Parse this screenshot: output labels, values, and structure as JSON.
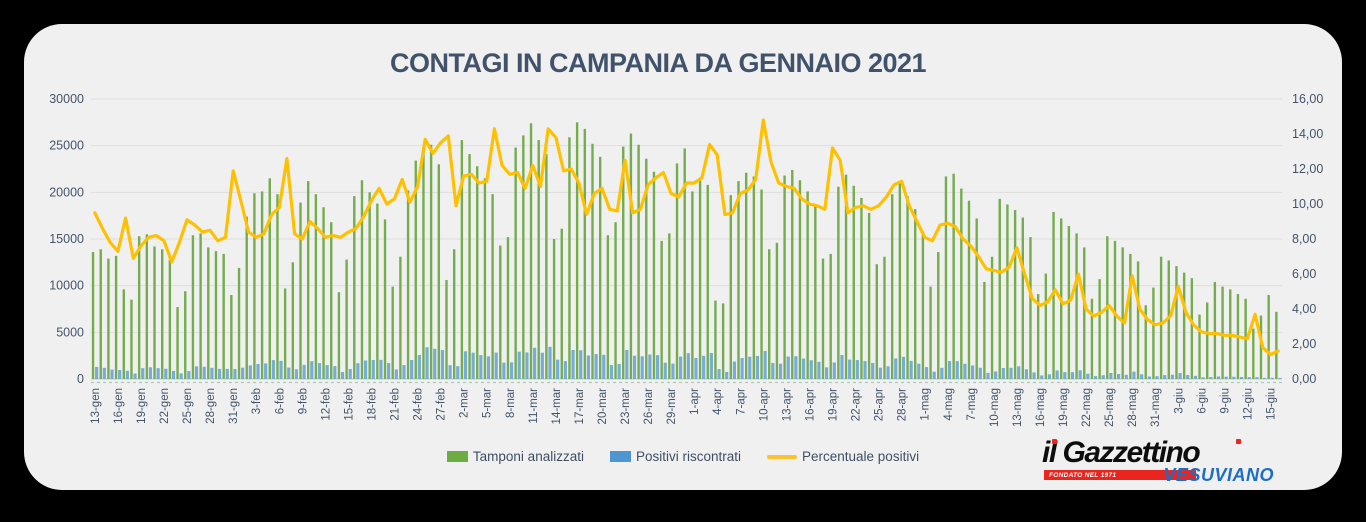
{
  "page": {
    "outer_background": "#000000",
    "card_background": "#f0f0f1"
  },
  "header": {
    "title": "CONTAGI IN CAMPANIA DA GENNAIO 2021",
    "color": "#41536b"
  },
  "legend": [
    {
      "label": "Tamponi analizzati",
      "type": "bar",
      "color": "#6cad43"
    },
    {
      "label": "Positivi riscontrati",
      "type": "bar",
      "color": "#4e96d2"
    },
    {
      "label": "Percentuale positivi",
      "type": "line",
      "color": "#ffc12e"
    }
  ],
  "logo": {
    "title": "il Gazzettino",
    "banner": "FONDATO NEL 1971",
    "subtitle": "VESUVIANO",
    "colors": {
      "title": "#0d0d0d",
      "banner": "#e8261f",
      "subtitle": "#1b6ec8"
    }
  },
  "chart_data": {
    "type": "combo",
    "title": "CONTAGI IN CAMPANIA DA GENNAIO 2021",
    "n_points": 155,
    "tick_interval_days": 3,
    "grid": true,
    "legend_position": "bottom",
    "x_tick_labels": [
      "13-gen",
      "16-gen",
      "19-gen",
      "22-gen",
      "25-gen",
      "28-gen",
      "31-gen",
      "3-feb",
      "6-feb",
      "9-feb",
      "12-feb",
      "15-feb",
      "18-feb",
      "21-feb",
      "24-feb",
      "27-feb",
      "2-mar",
      "5-mar",
      "8-mar",
      "11-mar",
      "14-mar",
      "17-mar",
      "20-mar",
      "23-mar",
      "26-mar",
      "29-mar",
      "1-apr",
      "4-apr",
      "7-apr",
      "10-apr",
      "13-apr",
      "16-apr",
      "19-apr",
      "22-apr",
      "25-apr",
      "28-apr",
      "1-mag",
      "4-mag",
      "7-mag",
      "10-mag",
      "13-mag",
      "16-mag",
      "19-mag",
      "22-mag",
      "25-mag",
      "28-mag",
      "31-mag",
      "3-giu",
      "6-giu",
      "9-giu",
      "12-giu",
      "15-giu"
    ],
    "left_axis": {
      "min": 0,
      "max": 30000,
      "step": 5000,
      "tick_labels": [
        "0",
        "5000",
        "10000",
        "15000",
        "20000",
        "25000",
        "30000"
      ]
    },
    "right_axis": {
      "min": 0,
      "max": 16,
      "step": 2,
      "tick_labels": [
        "0,00",
        "2,00",
        "4,00",
        "6,00",
        "8,00",
        "10,00",
        "12,00",
        "14,00",
        "16,00"
      ]
    },
    "series": [
      {
        "name": "Tamponi analizzati",
        "type": "bar",
        "axis": "left",
        "color": "#74ac4e",
        "values": [
          13600,
          13900,
          12900,
          13200,
          9600,
          8500,
          15300,
          15500,
          14200,
          13900,
          12800,
          7700,
          9400,
          15400,
          15600,
          14100,
          13700,
          13400,
          9000,
          11900,
          17400,
          19900,
          20100,
          21500,
          19800,
          9700,
          12500,
          18900,
          21200,
          19800,
          18400,
          16800,
          9300,
          12800,
          19600,
          21300,
          20000,
          18800,
          17100,
          9900,
          13100,
          20200,
          23400,
          24800,
          25100,
          23000,
          10600,
          13900,
          25600,
          24100,
          22800,
          21500,
          19800,
          14300,
          15200,
          24800,
          26100,
          27400,
          25600,
          24100,
          15000,
          16100,
          25900,
          27500,
          26800,
          25200,
          23800,
          15400,
          16800,
          24900,
          26300,
          25100,
          23600,
          22200,
          14800,
          15600,
          23100,
          24700,
          20100,
          21600,
          20800,
          8400,
          8100,
          19700,
          21200,
          22100,
          21700,
          20300,
          13900,
          14600,
          21800,
          22400,
          21300,
          20100,
          18600,
          12900,
          13400,
          20600,
          21900,
          20700,
          19400,
          17800,
          12300,
          13100,
          19800,
          21000,
          19600,
          18200,
          15800,
          9900,
          13600,
          21700,
          22000,
          20400,
          19100,
          17200,
          10400,
          13100,
          19300,
          18700,
          18100,
          17300,
          15200,
          9100,
          11300,
          17900,
          17200,
          16400,
          15600,
          14100,
          8600,
          10700,
          15300,
          14800,
          14100,
          13400,
          12600,
          7900,
          9800,
          13100,
          12700,
          12100,
          11400,
          10800,
          6900,
          8200,
          10400,
          9900,
          9600,
          9100,
          8600,
          5400,
          6800,
          9000,
          7200
        ]
      },
      {
        "name": "Positivi riscontrati",
        "type": "bar",
        "axis": "left",
        "color": "#62a0d2",
        "values": [
          1292,
          1195,
          1006,
          964,
          883,
          587,
          1163,
          1256,
          1164,
          1098,
          858,
          601,
          855,
          1355,
          1310,
          1199,
          1082,
          1085,
          1071,
          1214,
          1462,
          1612,
          1668,
          2021,
          1940,
          1222,
          1038,
          1512,
          1908,
          1703,
          1490,
          1378,
          753,
          1075,
          1686,
          1981,
          2040,
          2049,
          1710,
          1020,
          1493,
          2040,
          2574,
          3398,
          3238,
          3105,
          1473,
          1376,
          2970,
          2820,
          2554,
          2430,
          2831,
          1745,
          1778,
          2926,
          2845,
          3343,
          2816,
          3446,
          2070,
          1916,
          3108,
          3080,
          2519,
          2671,
          2594,
          1494,
          1613,
          3113,
          2499,
          2435,
          2620,
          2553,
          1746,
          1654,
          2402,
          2766,
          2251,
          2484,
          2787,
          1075,
          761,
          1872,
          2247,
          2387,
          2474,
          3004,
          1724,
          1635,
          2398,
          2442,
          2194,
          2010,
          1841,
          1251,
          1769,
          2575,
          2081,
          2029,
          1921,
          1727,
          1218,
          1362,
          2198,
          2373,
          1940,
          1638,
          1280,
          782,
          1197,
          1931,
          1914,
          1632,
          1452,
          1204,
          655,
          812,
          1177,
          1197,
          1358,
          1038,
          699,
          382,
          497,
          913,
          740,
          738,
          936,
          564,
          310,
          407,
          643,
          533,
          451,
          791,
          504,
          269,
          304,
          419,
          457,
          641,
          433,
          335,
          186,
          213,
          270,
          248,
          240,
          218,
          198,
          200,
          122,
          126,
          115
        ]
      },
      {
        "name": "Percentuale positivi",
        "type": "line",
        "axis": "right",
        "color": "#ffc000",
        "values": [
          9.5,
          8.6,
          7.8,
          7.3,
          9.2,
          6.9,
          7.6,
          8.1,
          8.2,
          7.9,
          6.7,
          7.8,
          9.1,
          8.8,
          8.4,
          8.5,
          7.9,
          8.1,
          11.9,
          10.2,
          8.4,
          8.1,
          8.3,
          9.4,
          9.8,
          12.6,
          8.3,
          8.0,
          9.0,
          8.6,
          8.1,
          8.2,
          8.1,
          8.4,
          8.6,
          9.3,
          10.2,
          10.9,
          10.0,
          10.3,
          11.4,
          10.1,
          11.0,
          13.7,
          12.9,
          13.5,
          13.9,
          9.9,
          11.6,
          11.7,
          11.2,
          11.3,
          14.3,
          12.2,
          11.7,
          11.8,
          10.9,
          12.2,
          11.0,
          14.3,
          13.8,
          11.9,
          12.0,
          11.2,
          9.4,
          10.6,
          10.9,
          9.7,
          9.6,
          12.5,
          9.5,
          9.7,
          11.1,
          11.5,
          11.8,
          10.6,
          10.4,
          11.2,
          11.2,
          11.5,
          13.4,
          12.8,
          9.4,
          9.5,
          10.6,
          10.8,
          11.4,
          14.8,
          12.4,
          11.2,
          11.0,
          10.9,
          10.3,
          10.0,
          9.9,
          9.7,
          13.2,
          12.5,
          9.5,
          9.8,
          9.9,
          9.7,
          9.9,
          10.4,
          11.1,
          11.3,
          9.9,
          9.0,
          8.1,
          7.9,
          8.8,
          8.9,
          8.7,
          8.0,
          7.6,
          7.0,
          6.3,
          6.2,
          6.1,
          6.4,
          7.5,
          6.0,
          4.6,
          4.2,
          4.4,
          5.1,
          4.3,
          4.5,
          6.0,
          4.0,
          3.6,
          3.8,
          4.2,
          3.6,
          3.2,
          5.9,
          4.0,
          3.4,
          3.1,
          3.2,
          3.6,
          5.3,
          3.8,
          3.1,
          2.7,
          2.6,
          2.6,
          2.5,
          2.5,
          2.4,
          2.3,
          3.7,
          1.8,
          1.4,
          1.6
        ]
      }
    ]
  }
}
